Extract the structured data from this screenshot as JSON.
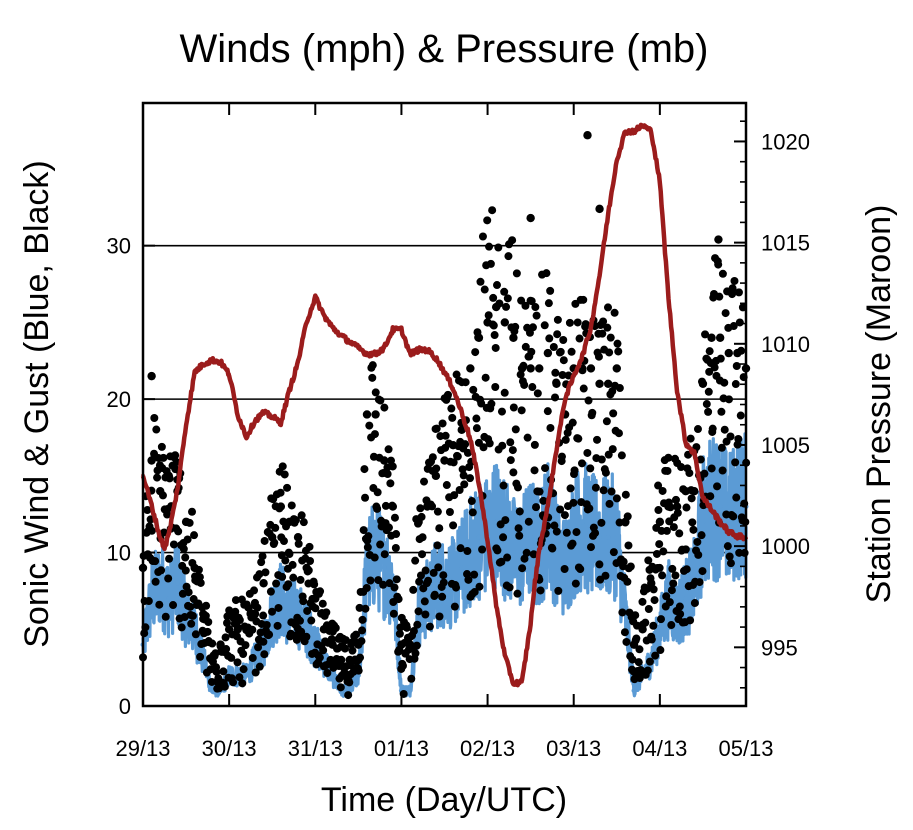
{
  "chart_data": {
    "type": "line",
    "title": "Winds (mph) & Pressure (mb)",
    "xlabel": "Time (Day/UTC)",
    "ylabel_left": "Sonic Wind & Gust (Blue, Black)",
    "ylabel_right": "Station Pressure (Maroon)",
    "x_unit": "days since 29/13",
    "xlim": [
      0,
      7
    ],
    "ylim_left": [
      0,
      39.3
    ],
    "ylim_right": [
      992.1,
      1021.9
    ],
    "x_ticks": [
      {
        "value": 0,
        "label": "29/13"
      },
      {
        "value": 1,
        "label": "30/13"
      },
      {
        "value": 2,
        "label": "31/13"
      },
      {
        "value": 3,
        "label": "01/13"
      },
      {
        "value": 4,
        "label": "02/13"
      },
      {
        "value": 5,
        "label": "03/13"
      },
      {
        "value": 6,
        "label": "04/13"
      },
      {
        "value": 7,
        "label": "05/13"
      }
    ],
    "y_left_ticks": [
      {
        "value": 0,
        "label": "0"
      },
      {
        "value": 10,
        "label": "10"
      },
      {
        "value": 20,
        "label": "20"
      },
      {
        "value": 30,
        "label": "30"
      }
    ],
    "y_right_ticks": [
      {
        "value": 995,
        "label": "995"
      },
      {
        "value": 1000,
        "label": "1000"
      },
      {
        "value": 1005,
        "label": "1005"
      },
      {
        "value": 1010,
        "label": "1010"
      },
      {
        "value": 1015,
        "label": "1015"
      },
      {
        "value": 1020,
        "label": "1020"
      }
    ],
    "gridlines_left": [
      10,
      20,
      30
    ],
    "series": [
      {
        "name": "Sonic Wind",
        "axis": "left",
        "style": "line",
        "color": "#5b9bd5",
        "x": [
          0,
          0.1,
          0.2,
          0.3,
          0.4,
          0.5,
          0.6,
          0.7,
          0.8,
          0.9,
          1,
          1.1,
          1.2,
          1.3,
          1.4,
          1.5,
          1.6,
          1.7,
          1.8,
          1.9,
          2,
          2.1,
          2.2,
          2.3,
          2.4,
          2.5,
          2.6,
          2.7,
          2.8,
          2.9,
          3,
          3.1,
          3.2,
          3.3,
          3.4,
          3.5,
          3.6,
          3.7,
          3.8,
          3.9,
          4,
          4.1,
          4.2,
          4.3,
          4.4,
          4.5,
          4.6,
          4.7,
          4.8,
          4.9,
          5,
          5.1,
          5.2,
          5.3,
          5.4,
          5.5,
          5.6,
          5.7,
          5.8,
          5.9,
          6,
          6.1,
          6.2,
          6.3,
          6.4,
          6.5,
          6.6,
          6.7,
          6.8,
          6.9,
          7
        ],
        "values": [
          4,
          7,
          8,
          7,
          8,
          6,
          5,
          3,
          1,
          1,
          2,
          2,
          2,
          3,
          4,
          6,
          7,
          6,
          6,
          5,
          4,
          3,
          2,
          1,
          1,
          2,
          9,
          10,
          9,
          8,
          1,
          1,
          6,
          7,
          8,
          8,
          8,
          9,
          10,
          11,
          11,
          12,
          11,
          10,
          10,
          11,
          10,
          12,
          10,
          9,
          11,
          12,
          11,
          11,
          11,
          11,
          6,
          1,
          2,
          3,
          5,
          7,
          6,
          7,
          8,
          12,
          13,
          13,
          12,
          13,
          13
        ]
      },
      {
        "name": "Gust",
        "axis": "left",
        "style": "scatter",
        "color": "#000000",
        "x": [
          0,
          0.1,
          0.2,
          0.3,
          0.4,
          0.5,
          0.6,
          0.7,
          0.8,
          0.9,
          1,
          1.1,
          1.2,
          1.3,
          1.4,
          1.5,
          1.6,
          1.7,
          1.8,
          1.9,
          2,
          2.1,
          2.2,
          2.3,
          2.4,
          2.5,
          2.6,
          2.7,
          2.8,
          2.9,
          3,
          3.1,
          3.2,
          3.3,
          3.4,
          3.5,
          3.6,
          3.7,
          3.8,
          3.9,
          4,
          4.1,
          4.2,
          4.3,
          4.4,
          4.5,
          4.6,
          4.7,
          4.8,
          4.9,
          5,
          5.1,
          5.2,
          5.3,
          5.4,
          5.5,
          5.6,
          5.7,
          5.8,
          5.9,
          6,
          6.1,
          6.2,
          6.3,
          6.4,
          6.5,
          6.6,
          6.7,
          6.8,
          6.9,
          7
        ],
        "values": [
          9,
          16,
          14,
          15,
          14,
          12,
          9,
          6,
          3,
          4,
          5,
          5,
          5,
          6,
          8,
          11,
          13,
          12,
          11,
          9,
          7,
          5,
          4,
          3,
          3,
          4,
          19,
          19,
          16,
          13,
          4,
          4,
          12,
          13,
          15,
          16,
          17,
          18,
          22,
          24,
          25,
          26,
          25,
          24,
          22,
          22,
          22,
          23,
          21,
          19,
          22,
          22,
          22,
          21,
          21,
          22,
          12,
          4,
          5,
          8,
          12,
          13,
          13,
          14,
          14,
          21,
          24,
          24,
          23,
          23,
          22
        ],
        "extra_points": [
          {
            "x": 0.1,
            "y": 21.5
          },
          {
            "x": 4.5,
            "y": 31.8
          },
          {
            "x": 5.16,
            "y": 37.2
          },
          {
            "x": 5.3,
            "y": 32.4
          },
          {
            "x": 6.68,
            "y": 30.4
          }
        ]
      },
      {
        "name": "Station Pressure",
        "axis": "right",
        "style": "line",
        "color": "#9b1c1c",
        "x": [
          0,
          0.1,
          0.2,
          0.25,
          0.3,
          0.4,
          0.5,
          0.6,
          0.7,
          0.8,
          0.9,
          1,
          1.1,
          1.2,
          1.3,
          1.4,
          1.5,
          1.6,
          1.7,
          1.8,
          1.9,
          2,
          2.1,
          2.2,
          2.3,
          2.4,
          2.5,
          2.6,
          2.7,
          2.8,
          2.9,
          3,
          3.1,
          3.2,
          3.3,
          3.4,
          3.5,
          3.6,
          3.7,
          3.8,
          3.9,
          4,
          4.1,
          4.2,
          4.3,
          4.4,
          4.5,
          4.55,
          4.6,
          4.7,
          4.8,
          4.9,
          5,
          5.1,
          5.2,
          5.3,
          5.4,
          5.5,
          5.6,
          5.7,
          5.8,
          5.9,
          6,
          6.1,
          6.2,
          6.3,
          6.4,
          6.5,
          6.6,
          6.7,
          6.8,
          6.9,
          7
        ],
        "values": [
          1003.5,
          1002,
          1000.4,
          999.9,
          1000.6,
          1002.8,
          1006,
          1008.6,
          1009,
          1009.2,
          1009.1,
          1008.5,
          1006.5,
          1005.4,
          1006.2,
          1006.6,
          1006.4,
          1006.1,
          1007.7,
          1009.1,
          1011.1,
          1012.3,
          1011.4,
          1010.8,
          1010.4,
          1010.1,
          1009.8,
          1009.5,
          1009.5,
          1009.8,
          1010.7,
          1010.7,
          1009.5,
          1009.7,
          1009.7,
          1009.3,
          1008.6,
          1007.8,
          1006.6,
          1005.3,
          1003.1,
          1000.3,
          997.1,
          994.6,
          993.2,
          993.3,
          996.2,
          998.2,
          999.8,
          1002,
          1004.8,
          1007.3,
          1008.4,
          1009.4,
          1010.8,
          1013.4,
          1016.4,
          1019.1,
          1020.5,
          1020.5,
          1020.8,
          1020.5,
          1018,
          1012.3,
          1007.7,
          1005.1,
          1004.6,
          1002.4,
          1001.8,
          1001.2,
          1000.7,
          1000.5,
          1000.4
        ]
      }
    ]
  },
  "colors": {
    "wind": "#5b9bd5",
    "gust": "#000000",
    "pressure": "#9b1c1c",
    "grid": "#000000"
  }
}
